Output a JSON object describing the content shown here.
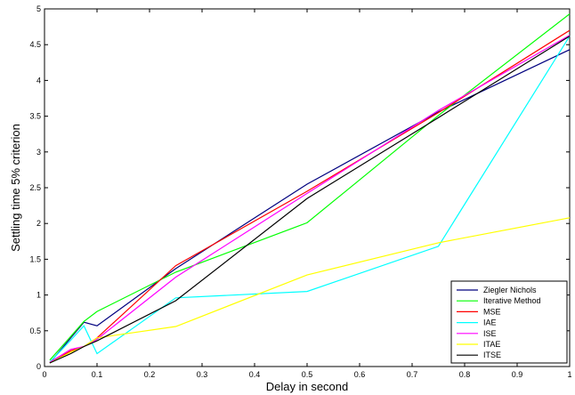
{
  "chart_data": {
    "type": "line",
    "title": "",
    "xlabel": "Delay in second",
    "ylabel": "Settling time 5% criterion",
    "xlim": [
      0,
      1
    ],
    "ylim": [
      0,
      5
    ],
    "xticks": [
      0,
      0.1,
      0.2,
      0.3,
      0.4,
      0.5,
      0.6,
      0.7,
      0.8,
      0.9,
      1
    ],
    "xtick_labels": [
      "0",
      "0.1",
      "0.2",
      "0.3",
      "0.4",
      "0.5",
      "0.6",
      "0.7",
      "0.8",
      "0.9",
      "1"
    ],
    "yticks": [
      0,
      0.5,
      1,
      1.5,
      2,
      2.5,
      3,
      3.5,
      4,
      4.5,
      5
    ],
    "ytick_labels": [
      "0",
      "0.5",
      "1",
      "1.5",
      "2",
      "2.5",
      "3",
      "3.5",
      "4",
      "4.5",
      "5"
    ],
    "grid": false,
    "legend_position": "bottom-right",
    "series": [
      {
        "name": "Ziegler Nichols",
        "color": "#00007f",
        "x": [
          0.01,
          0.05,
          0.075,
          0.1,
          0.25,
          0.5,
          0.75,
          1
        ],
        "y": [
          0.05,
          0.4,
          0.62,
          0.57,
          1.37,
          2.55,
          3.56,
          4.43
        ]
      },
      {
        "name": "Iterative Method",
        "color": "#00ff00",
        "x": [
          0.01,
          0.05,
          0.075,
          0.1,
          0.25,
          0.5,
          0.75,
          1
        ],
        "y": [
          0.09,
          0.42,
          0.63,
          0.77,
          1.32,
          2.01,
          3.51,
          4.93
        ]
      },
      {
        "name": "MSE",
        "color": "#ff0000",
        "x": [
          0.01,
          0.05,
          0.075,
          0.1,
          0.25,
          0.5,
          0.75,
          1
        ],
        "y": [
          0.05,
          0.22,
          0.28,
          0.4,
          1.41,
          2.45,
          3.55,
          4.7
        ]
      },
      {
        "name": "IAE",
        "color": "#00ffff",
        "x": [
          0.01,
          0.05,
          0.075,
          0.1,
          0.25,
          0.5,
          0.75,
          1
        ],
        "y": [
          0.06,
          0.37,
          0.57,
          0.18,
          0.96,
          1.05,
          1.68,
          4.62
        ]
      },
      {
        "name": "ISE",
        "color": "#ff00ff",
        "x": [
          0.01,
          0.05,
          0.075,
          0.1,
          0.25,
          0.5,
          0.75,
          1
        ],
        "y": [
          0.06,
          0.24,
          0.28,
          0.38,
          1.25,
          2.42,
          3.58,
          4.63
        ]
      },
      {
        "name": "ITAE",
        "color": "#ffff00",
        "x": [
          0.01,
          0.05,
          0.075,
          0.1,
          0.25,
          0.5,
          0.75,
          1
        ],
        "y": [
          0.05,
          0.2,
          0.28,
          0.4,
          0.56,
          1.28,
          1.73,
          2.08
        ]
      },
      {
        "name": "ITSE",
        "color": "#000000",
        "x": [
          0.01,
          0.05,
          0.075,
          0.1,
          0.25,
          0.5,
          0.75,
          1
        ],
        "y": [
          0.05,
          0.18,
          0.28,
          0.36,
          0.92,
          2.35,
          3.48,
          4.62
        ]
      }
    ]
  }
}
